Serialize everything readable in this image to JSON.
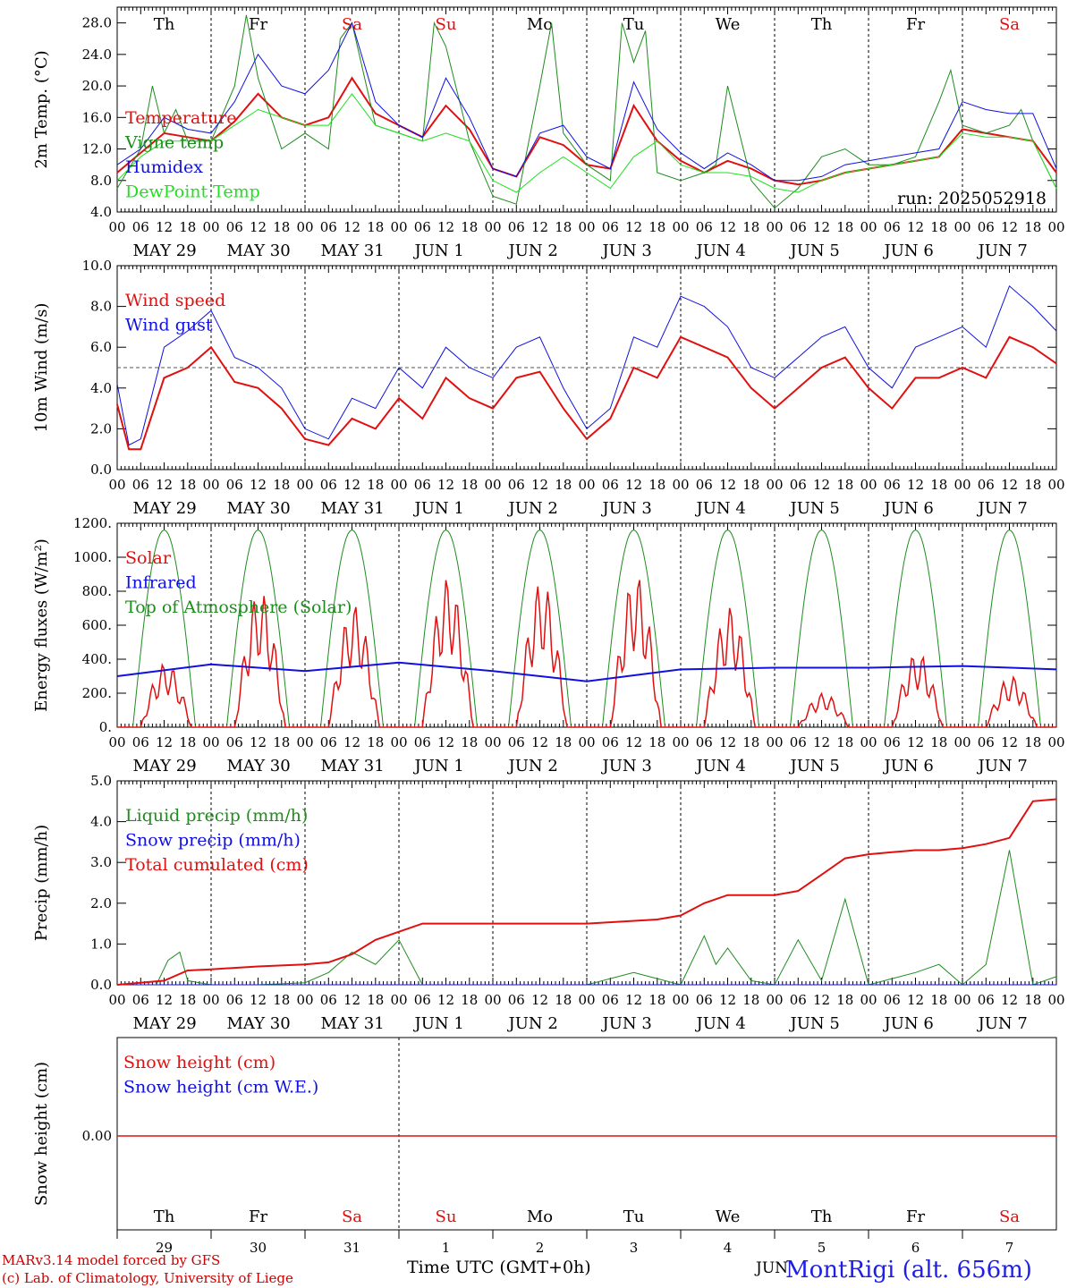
{
  "run_label": "run: 2025052918",
  "footer": {
    "model_line1": "MARv3.14 model forced by GFS",
    "model_line2": "(c) Lab. of Climatology, University of Liege",
    "time_axis": "Time UTC (GMT+0h)",
    "month_fragment": "JUN",
    "station": "MontRigi (alt. 656m)"
  },
  "days": {
    "weekdays": [
      "Th",
      "Fr",
      "Sa",
      "Su",
      "Mo",
      "Tu",
      "We",
      "Th",
      "Fr",
      "Sa"
    ],
    "weekend_flags": [
      false,
      false,
      true,
      true,
      false,
      false,
      false,
      false,
      false,
      true
    ],
    "dates": [
      "MAY 29",
      "MAY 30",
      "MAY 31",
      "JUN  1",
      "JUN  2",
      "JUN  3",
      "JUN  4",
      "JUN  5",
      "JUN  6",
      "JUN  7"
    ],
    "day_numbers": [
      "29",
      "30",
      "31",
      "1",
      "2",
      "3",
      "4",
      "5",
      "6",
      "7"
    ],
    "hour_labels": [
      "00",
      "06",
      "12",
      "18"
    ],
    "last_hour_label": "00"
  },
  "colors": {
    "red": "#e01010",
    "dark_green": "#1e8c1e",
    "blue": "#1010e0",
    "light_green": "#20e020",
    "weekend": "#e01010",
    "weekday": "#000000",
    "station": "#1e1ee8",
    "footer_red": "#cc0000"
  },
  "chart_data": [
    {
      "type": "line",
      "ylabel": "2m Temp. (°C)",
      "ylim": [
        4.0,
        30.0
      ],
      "yticks": [
        "4.0",
        "8.0",
        "12.0",
        "16.0",
        "20.0",
        "24.0",
        "28.0"
      ],
      "x_units": "hours since 2025-05-29 00 UTC",
      "series": [
        {
          "name": "Temperature",
          "color": "red",
          "x": [
            0,
            6,
            12,
            18,
            24,
            30,
            36,
            42,
            48,
            54,
            60,
            66,
            72,
            78,
            84,
            90,
            96,
            102,
            108,
            114,
            120,
            126,
            132,
            138,
            144,
            150,
            156,
            162,
            168,
            174,
            180,
            186,
            192,
            198,
            204,
            210,
            216,
            222,
            228,
            234,
            240
          ],
          "y": [
            9,
            11.5,
            14,
            13.5,
            13,
            15.5,
            19,
            16,
            15,
            16,
            21,
            16.5,
            15,
            13.5,
            17.5,
            14.5,
            9.5,
            8.5,
            13.5,
            12.5,
            10,
            9.5,
            17.5,
            13,
            10.5,
            9,
            10.5,
            9.5,
            8,
            7.5,
            8,
            9,
            9.5,
            10,
            10.5,
            11,
            14.5,
            14,
            13.5,
            13,
            9
          ]
        },
        {
          "name": "Vigne temp",
          "color": "dark_green",
          "x": [
            0,
            6,
            9,
            12,
            15,
            18,
            24,
            30,
            33,
            36,
            42,
            48,
            54,
            57,
            60,
            66,
            72,
            78,
            81,
            84,
            90,
            96,
            102,
            108,
            111,
            114,
            120,
            126,
            129,
            132,
            135,
            138,
            144,
            150,
            153,
            156,
            162,
            168,
            174,
            180,
            186,
            192,
            198,
            204,
            210,
            213,
            216,
            222,
            228,
            231,
            234,
            240
          ],
          "y": [
            7,
            12,
            20,
            14,
            17,
            13,
            13,
            20,
            29,
            21,
            12,
            14,
            12,
            26,
            28,
            15,
            14,
            13,
            28,
            25,
            13,
            6,
            5,
            20,
            28,
            14,
            10,
            8,
            28,
            23,
            27,
            9,
            8,
            9,
            10,
            20,
            8,
            4.5,
            7,
            11,
            12,
            10,
            10,
            11,
            18,
            22,
            15,
            14,
            15,
            17,
            13,
            7
          ]
        },
        {
          "name": "Humidex",
          "color": "blue",
          "x": [
            0,
            6,
            12,
            18,
            24,
            30,
            36,
            42,
            48,
            54,
            60,
            66,
            72,
            78,
            84,
            90,
            96,
            102,
            108,
            114,
            120,
            126,
            132,
            138,
            144,
            150,
            156,
            162,
            168,
            174,
            180,
            186,
            192,
            198,
            204,
            210,
            216,
            222,
            228,
            234,
            240
          ],
          "y": [
            10,
            12,
            16,
            14.5,
            14,
            18,
            24,
            20,
            19,
            22,
            28,
            18,
            15,
            13.5,
            21,
            16,
            9.5,
            8.5,
            14,
            15,
            11,
            9.5,
            20.5,
            14.5,
            11.5,
            9.5,
            11.5,
            10,
            8,
            8,
            8.5,
            10,
            10.5,
            11,
            11.5,
            12,
            18,
            17,
            16.5,
            16.5,
            9.5
          ]
        },
        {
          "name": "DewPoint Temp",
          "color": "light_green",
          "x": [
            0,
            6,
            12,
            18,
            24,
            30,
            36,
            42,
            48,
            54,
            60,
            66,
            72,
            78,
            84,
            90,
            96,
            102,
            108,
            114,
            120,
            126,
            132,
            138,
            144,
            150,
            156,
            162,
            168,
            174,
            180,
            186,
            192,
            198,
            204,
            210,
            216,
            222,
            228,
            234,
            240
          ],
          "y": [
            8,
            11,
            13,
            13,
            13,
            15,
            17,
            16,
            15,
            15,
            19,
            15,
            14,
            13,
            14,
            13,
            8,
            6.5,
            9,
            11,
            9,
            7,
            11,
            13,
            10,
            9,
            9,
            8.5,
            7,
            6.5,
            8,
            9,
            9.5,
            10,
            10.5,
            11,
            14,
            13.5,
            13.5,
            13,
            7
          ]
        }
      ]
    },
    {
      "type": "line",
      "ylabel": "10m Wind (m/s)",
      "ylim": [
        0.0,
        10.0
      ],
      "yticks": [
        "0.0",
        "2.0",
        "4.0",
        "6.0",
        "8.0",
        "10.0"
      ],
      "reference_line": 5.0,
      "series": [
        {
          "name": "Wind speed",
          "color": "red",
          "x": [
            0,
            3,
            6,
            12,
            18,
            24,
            30,
            36,
            42,
            48,
            54,
            60,
            66,
            72,
            78,
            84,
            90,
            96,
            102,
            108,
            114,
            120,
            126,
            132,
            138,
            144,
            150,
            156,
            162,
            168,
            174,
            180,
            186,
            192,
            198,
            204,
            210,
            216,
            222,
            228,
            234,
            240
          ],
          "y": [
            3.2,
            1.0,
            1.0,
            4.5,
            5.0,
            6.0,
            4.3,
            4.0,
            3.0,
            1.5,
            1.2,
            2.5,
            2.0,
            3.5,
            2.5,
            4.5,
            3.5,
            3.0,
            4.5,
            4.8,
            3.0,
            1.5,
            2.5,
            5.0,
            4.5,
            6.5,
            6.0,
            5.5,
            4.0,
            3.0,
            4.0,
            5.0,
            5.5,
            4.0,
            3.0,
            4.5,
            4.5,
            5.0,
            4.5,
            6.5,
            6.0,
            5.2
          ]
        },
        {
          "name": "Wind gust",
          "color": "blue",
          "x": [
            0,
            3,
            6,
            12,
            18,
            24,
            30,
            36,
            42,
            48,
            54,
            60,
            66,
            72,
            78,
            84,
            90,
            96,
            102,
            108,
            114,
            120,
            126,
            132,
            138,
            144,
            150,
            156,
            162,
            168,
            174,
            180,
            186,
            192,
            198,
            204,
            210,
            216,
            222,
            228,
            234,
            240
          ],
          "y": [
            4.2,
            1.2,
            1.5,
            6.0,
            6.8,
            7.8,
            5.5,
            5.0,
            4.0,
            2.0,
            1.5,
            3.5,
            3.0,
            5.0,
            4.0,
            6.0,
            5.0,
            4.5,
            6.0,
            6.5,
            4.0,
            2.0,
            3.0,
            6.5,
            6.0,
            8.5,
            8.0,
            7.0,
            5.0,
            4.5,
            5.5,
            6.5,
            7.0,
            5.0,
            4.0,
            6.0,
            6.5,
            7.0,
            6.0,
            9.0,
            8.0,
            6.8
          ]
        }
      ]
    },
    {
      "type": "line",
      "ylabel": "Energy fluxes (W/m²)",
      "ylim": [
        0,
        1200
      ],
      "yticks": [
        "0.",
        "200.",
        "400.",
        "600.",
        "800.",
        "1000.",
        "1200."
      ],
      "series": [
        {
          "name": "Solar",
          "color": "red",
          "day_peaks": [
            380,
            800,
            720,
            880,
            860,
            900,
            710,
            200,
            440,
            300
          ]
        },
        {
          "name": "Infrared",
          "color": "blue",
          "x": [
            0,
            24,
            48,
            72,
            96,
            120,
            144,
            168,
            192,
            216,
            240
          ],
          "y": [
            300,
            370,
            330,
            380,
            330,
            270,
            340,
            350,
            350,
            360,
            340
          ]
        },
        {
          "name": "Top of Atmosphere (Solar)",
          "color": "dark_green",
          "daily_peak": 1160,
          "sunrise_hour": 4,
          "sunset_hour": 20
        }
      ]
    },
    {
      "type": "line",
      "ylabel": "Precip (mm/h)",
      "ylim": [
        0.0,
        5.0
      ],
      "yticks": [
        "0.0",
        "1.0",
        "2.0",
        "3.0",
        "4.0",
        "5.0"
      ],
      "series": [
        {
          "name": "Liquid precip (mm/h)",
          "color": "dark_green",
          "x": [
            0,
            10,
            13,
            16,
            18,
            24,
            36,
            48,
            54,
            60,
            66,
            72,
            78,
            96,
            120,
            132,
            144,
            150,
            153,
            156,
            162,
            168,
            174,
            180,
            186,
            192,
            204,
            210,
            216,
            222,
            228,
            234,
            240
          ],
          "y": [
            0,
            0,
            0.6,
            0.8,
            0.1,
            0,
            0,
            0.05,
            0.3,
            0.8,
            0.5,
            1.1,
            0,
            0,
            0,
            0.3,
            0,
            1.2,
            0.5,
            0.9,
            0.1,
            0,
            1.1,
            0.1,
            2.1,
            0,
            0.3,
            0.5,
            0,
            0.5,
            3.3,
            0,
            0.2
          ]
        },
        {
          "name": "Snow precip (mm/h)",
          "color": "blue",
          "x": [
            0,
            240
          ],
          "y": [
            0,
            0
          ]
        },
        {
          "name": "Total cumulated (cm)",
          "color": "red",
          "x": [
            0,
            12,
            18,
            24,
            36,
            48,
            54,
            60,
            66,
            72,
            78,
            96,
            120,
            138,
            144,
            150,
            156,
            168,
            174,
            180,
            186,
            192,
            198,
            204,
            210,
            216,
            222,
            228,
            234,
            240
          ],
          "y": [
            0,
            0.1,
            0.35,
            0.38,
            0.45,
            0.5,
            0.55,
            0.75,
            1.1,
            1.3,
            1.5,
            1.5,
            1.5,
            1.6,
            1.7,
            2.0,
            2.2,
            2.2,
            2.3,
            2.7,
            3.1,
            3.2,
            3.25,
            3.3,
            3.3,
            3.35,
            3.45,
            3.6,
            4.5,
            4.55
          ]
        }
      ]
    },
    {
      "type": "line",
      "ylabel": "Snow height (cm)",
      "yticks": [
        "0.00"
      ],
      "series": [
        {
          "name": "Snow height (cm)",
          "color": "red",
          "x": [
            0,
            240
          ],
          "y": [
            0,
            0
          ]
        },
        {
          "name": "Snow height (cm W.E.)",
          "color": "blue",
          "x": [
            0,
            240
          ],
          "y": [
            0,
            0
          ]
        }
      ]
    }
  ]
}
